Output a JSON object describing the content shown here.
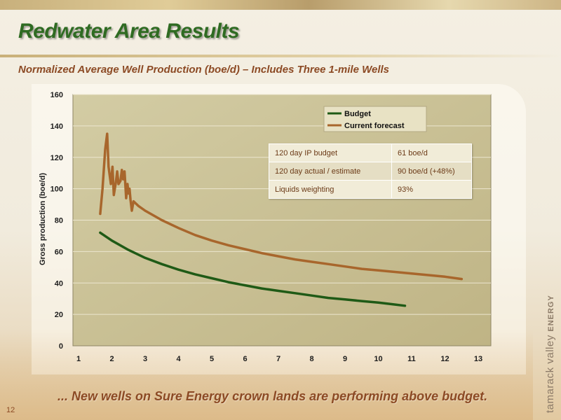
{
  "slide": {
    "title": "Redwater Area Results",
    "subtitle": "Normalized Average Well Production (boe/d) – Includes Three 1-mile Wells",
    "tagline": "... New wells on Sure Energy crown lands are performing above budget.",
    "page_number": "12",
    "brand_main": "tamarack valley",
    "brand_strong": "ENERGY"
  },
  "info_table": {
    "rows": [
      {
        "label": "120 day IP budget",
        "value": "61 boe/d"
      },
      {
        "label": "120 day actual / estimate",
        "value": "90 boe/d (+48%)"
      },
      {
        "label": "Liquids weighting",
        "value": "93%"
      }
    ]
  },
  "chart_data": {
    "type": "line",
    "ylabel": "Gross production (boe/d)",
    "xlabel": "",
    "xlim": [
      1,
      13
    ],
    "ylim": [
      0,
      160
    ],
    "x_ticks": [
      1,
      2,
      3,
      4,
      5,
      6,
      7,
      8,
      9,
      10,
      11,
      12,
      13
    ],
    "y_ticks": [
      0,
      20,
      40,
      60,
      80,
      100,
      120,
      140,
      160
    ],
    "grid": true,
    "legend_position": "top-right",
    "series": [
      {
        "name": "Budget",
        "color": "#1f5a16",
        "points": [
          [
            1.65,
            72
          ],
          [
            2.0,
            67
          ],
          [
            2.5,
            61
          ],
          [
            3.0,
            56
          ],
          [
            3.5,
            52
          ],
          [
            4.0,
            48.5
          ],
          [
            4.5,
            45.5
          ],
          [
            5.0,
            43
          ],
          [
            5.5,
            40.5
          ],
          [
            6.0,
            38.5
          ],
          [
            6.5,
            36.5
          ],
          [
            7.0,
            35
          ],
          [
            7.5,
            33.5
          ],
          [
            8.0,
            32
          ],
          [
            8.5,
            30.5
          ],
          [
            9.0,
            29.5
          ],
          [
            9.5,
            28.5
          ],
          [
            10.0,
            27.5
          ],
          [
            10.4,
            26.5
          ],
          [
            10.8,
            25.5
          ]
        ]
      },
      {
        "name": "Current forecast",
        "color": "#a8662c",
        "points": [
          [
            1.65,
            84
          ],
          [
            1.72,
            100
          ],
          [
            1.8,
            125
          ],
          [
            1.86,
            135
          ],
          [
            1.9,
            114
          ],
          [
            1.97,
            103
          ],
          [
            2.02,
            114
          ],
          [
            2.06,
            96
          ],
          [
            2.12,
            104
          ],
          [
            2.16,
            111
          ],
          [
            2.2,
            103
          ],
          [
            2.26,
            105
          ],
          [
            2.3,
            112
          ],
          [
            2.34,
            106
          ],
          [
            2.38,
            111
          ],
          [
            2.43,
            94
          ],
          [
            2.47,
            103
          ],
          [
            2.5,
            97
          ],
          [
            2.53,
            100
          ],
          [
            2.56,
            93
          ],
          [
            2.6,
            86
          ],
          [
            2.65,
            92
          ],
          [
            2.8,
            89
          ],
          [
            3.0,
            86
          ],
          [
            3.5,
            80
          ],
          [
            4.0,
            75
          ],
          [
            4.5,
            70.5
          ],
          [
            5.0,
            67
          ],
          [
            5.5,
            64
          ],
          [
            6.0,
            61.5
          ],
          [
            6.5,
            59
          ],
          [
            7.0,
            57
          ],
          [
            7.5,
            55
          ],
          [
            8.0,
            53.5
          ],
          [
            8.5,
            52
          ],
          [
            9.0,
            50.5
          ],
          [
            9.5,
            49
          ],
          [
            10.0,
            48
          ],
          [
            10.5,
            47
          ],
          [
            11.0,
            46
          ],
          [
            11.5,
            45
          ],
          [
            12.0,
            44
          ],
          [
            12.5,
            42.5
          ]
        ]
      }
    ]
  }
}
